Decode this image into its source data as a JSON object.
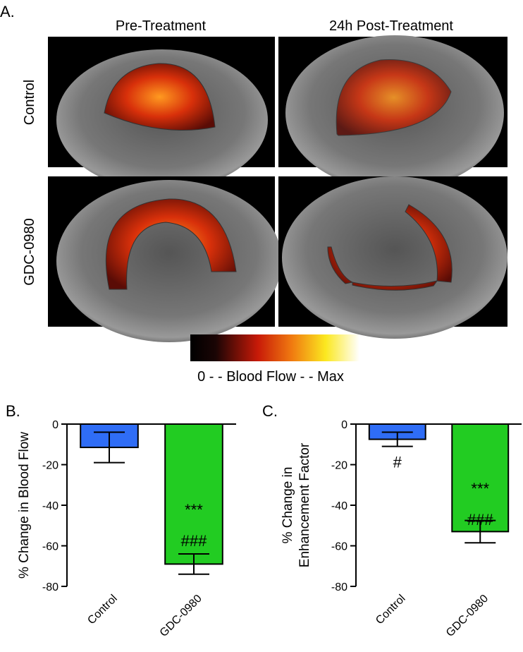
{
  "panel_a": {
    "label": "A.",
    "columns": [
      "Pre-Treatment",
      "24h Post-Treatment"
    ],
    "rows": [
      "Control",
      "GDC-0980"
    ],
    "colorbar_label": "0 - - Blood Flow - - Max"
  },
  "chart_data": [
    {
      "type": "bar",
      "panel_label": "B.",
      "ylabel": "% Change in Blood Flow",
      "categories": [
        "Control",
        "GDC-0980"
      ],
      "values": [
        -11.5,
        -69
      ],
      "errors": [
        7.5,
        5
      ],
      "colors": [
        "#2f6df6",
        "#22cc22"
      ],
      "ylim": [
        -80,
        0
      ],
      "yticks": [
        0,
        -20,
        -40,
        -60,
        -80
      ],
      "annotations": [
        {
          "category": "GDC-0980",
          "text": "***"
        },
        {
          "category": "GDC-0980",
          "text": "###"
        }
      ]
    },
    {
      "type": "bar",
      "panel_label": "C.",
      "ylabel": [
        "% Change in",
        "Enhancement Factor"
      ],
      "categories": [
        "Control",
        "GDC-0980"
      ],
      "values": [
        -7.5,
        -53
      ],
      "errors": [
        3.5,
        5.5
      ],
      "colors": [
        "#2f6df6",
        "#22cc22"
      ],
      "ylim": [
        -80,
        0
      ],
      "yticks": [
        0,
        -20,
        -40,
        -60,
        -80
      ],
      "annotations": [
        {
          "category": "Control",
          "text": "#"
        },
        {
          "category": "GDC-0980",
          "text": "***"
        },
        {
          "category": "GDC-0980",
          "text": "###"
        }
      ]
    }
  ]
}
